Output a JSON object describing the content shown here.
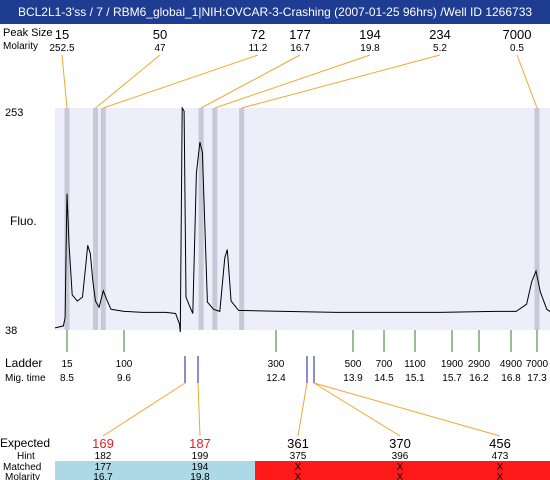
{
  "window": {
    "title": "BCL2L1-3'ss / 7 / RBM6_global_1|NIH:OVCAR-3-Crashing (2007-01-25 96hrs) /Well ID 1266733"
  },
  "labels": {
    "peak_size": "Peak Size",
    "molarity": "Molarity",
    "fluo": "Fluo.",
    "ladder": "Ladder",
    "mig_time": "Mig. time",
    "expected": "Expected",
    "hint": "Hint",
    "matched": "Matched",
    "molarity_bottom": "Molarity"
  },
  "colors": {
    "title_bg": "#1f3c93",
    "plot_bg": "#eeeefa",
    "peak_marker": "#c8c8d8",
    "peak_connector": "#f0a830",
    "ladder_tick": "#2e7d32",
    "sample_tick": "#1a1aa0",
    "expected_highlight": "#e02020",
    "matched_ok_bg": "#add8e6",
    "matched_fail_bg": "#ff1a1a"
  },
  "chart_data": {
    "type": "line",
    "y_axis": {
      "min": 38,
      "max": 253,
      "tick_labels": [
        "253",
        "38"
      ]
    },
    "peaks": [
      {
        "size": "15",
        "molarity": "252.5",
        "mig_time": 8.5
      },
      {
        "size": "50",
        "molarity": "47",
        "mig_time": 9.05
      },
      {
        "size": "72",
        "molarity": "11.2",
        "mig_time": 9.2
      },
      {
        "size": "177",
        "molarity": "16.7",
        "mig_time": 11.2
      },
      {
        "size": "194",
        "molarity": "19.8",
        "mig_time": 11.42
      },
      {
        "size": "234",
        "molarity": "5.2",
        "mig_time": 11.85
      },
      {
        "size": "7000",
        "molarity": "0.5",
        "mig_time": 17.3
      }
    ],
    "ladder": [
      {
        "size": "15",
        "time": "8.5"
      },
      {
        "size": "100",
        "time": "9.6"
      },
      {
        "size": "300",
        "time": "12.4"
      },
      {
        "size": "500",
        "time": "13.9"
      },
      {
        "size": "700",
        "time": "14.5"
      },
      {
        "size": "1100",
        "time": "15.1"
      },
      {
        "size": "1900",
        "time": "15.7"
      },
      {
        "size": "2900",
        "time": "16.2"
      },
      {
        "size": "4900",
        "time": "16.8"
      },
      {
        "size": "7000",
        "time": "17.3"
      }
    ],
    "sample_markers": [
      10.9,
      11.15,
      12.8,
      12.95
    ],
    "expected": [
      {
        "expected": "169",
        "hint": "182",
        "matched": "177",
        "molarity": "16.7",
        "matched_ok": true,
        "highlight": true,
        "marker": 10.9
      },
      {
        "expected": "187",
        "hint": "199",
        "matched": "194",
        "molarity": "19.8",
        "matched_ok": true,
        "highlight": true,
        "marker": 11.15
      },
      {
        "expected": "361",
        "hint": "375",
        "matched": "X",
        "molarity": "X",
        "matched_ok": false,
        "highlight": false,
        "marker": 12.8
      },
      {
        "expected": "370",
        "hint": "396",
        "matched": "X",
        "molarity": "X",
        "matched_ok": false,
        "highlight": false,
        "marker": 12.95
      },
      {
        "expected": "456",
        "hint": "473",
        "matched": "X",
        "molarity": "X",
        "matched_ok": false,
        "highlight": false,
        "marker": 12.95
      }
    ],
    "trace": [
      [
        8.0,
        40
      ],
      [
        8.35,
        42
      ],
      [
        8.42,
        50
      ],
      [
        8.46,
        110
      ],
      [
        8.5,
        170
      ],
      [
        8.54,
        120
      ],
      [
        8.6,
        72
      ],
      [
        8.7,
        66
      ],
      [
        8.8,
        70
      ],
      [
        8.86,
        100
      ],
      [
        8.9,
        120
      ],
      [
        8.95,
        112
      ],
      [
        9.0,
        85
      ],
      [
        9.05,
        66
      ],
      [
        9.12,
        60
      ],
      [
        9.2,
        76
      ],
      [
        9.27,
        67
      ],
      [
        9.35,
        58
      ],
      [
        9.6,
        56
      ],
      [
        10.0,
        55
      ],
      [
        10.5,
        55
      ],
      [
        10.7,
        54
      ],
      [
        10.78,
        44
      ],
      [
        10.8,
        36
      ],
      [
        10.84,
        253
      ],
      [
        10.88,
        250
      ],
      [
        10.92,
        70
      ],
      [
        10.98,
        62
      ],
      [
        11.05,
        54
      ],
      [
        11.12,
        190
      ],
      [
        11.18,
        220
      ],
      [
        11.22,
        210
      ],
      [
        11.3,
        65
      ],
      [
        11.4,
        58
      ],
      [
        11.5,
        56
      ],
      [
        11.58,
        108
      ],
      [
        11.62,
        116
      ],
      [
        11.68,
        66
      ],
      [
        11.8,
        57
      ],
      [
        12.5,
        56
      ],
      [
        13.5,
        55
      ],
      [
        14.5,
        55
      ],
      [
        15.5,
        55
      ],
      [
        16.5,
        56
      ],
      [
        16.9,
        56
      ],
      [
        17.1,
        63
      ],
      [
        17.2,
        85
      ],
      [
        17.28,
        95
      ],
      [
        17.35,
        75
      ],
      [
        17.45,
        58
      ],
      [
        17.5,
        56
      ]
    ]
  }
}
